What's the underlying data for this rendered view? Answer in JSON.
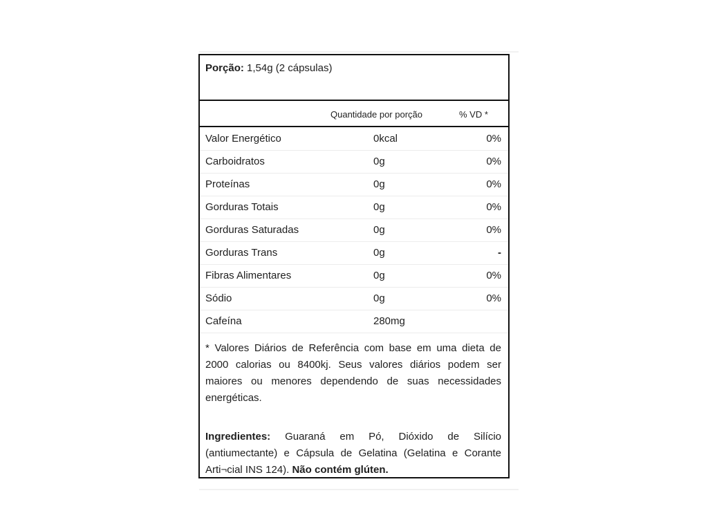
{
  "portion": {
    "label": "Porção:",
    "value": "1,54g (2 cápsulas)"
  },
  "columns": {
    "amount": "Quantidade por porção",
    "dv": "% VD *"
  },
  "rows": [
    {
      "name": "Valor Energético",
      "amount": "0kcal",
      "dv": "0%"
    },
    {
      "name": "Carboidratos",
      "amount": "0g",
      "dv": "0%"
    },
    {
      "name": "Proteínas",
      "amount": "0g",
      "dv": "0%"
    },
    {
      "name": "Gorduras Totais",
      "amount": "0g",
      "dv": "0%"
    },
    {
      "name": "Gorduras Saturadas",
      "amount": "0g",
      "dv": "0%"
    },
    {
      "name": "Gorduras Trans",
      "amount": "0g",
      "dv": "-"
    },
    {
      "name": "Fibras Alimentares",
      "amount": "0g",
      "dv": "0%"
    },
    {
      "name": "Sódio",
      "amount": "0g",
      "dv": "0%"
    },
    {
      "name": "Cafeína",
      "amount": "280mg",
      "dv": ""
    }
  ],
  "footnote": "* Valores Diários de Referência com base em uma dieta de 2000 calorias ou 8400kj. Seus valores diários podem ser maiores ou menores dependendo de suas necessidades energéticas.",
  "ingredients": {
    "label": "Ingredientes:",
    "text": " Guaraná em Pó, Dióxido de Silício (antiumectante) e Cápsula de Gelatina (Gelatina e Corante Arti¬cial INS 124). ",
    "gluten": "Não contém glúten."
  }
}
